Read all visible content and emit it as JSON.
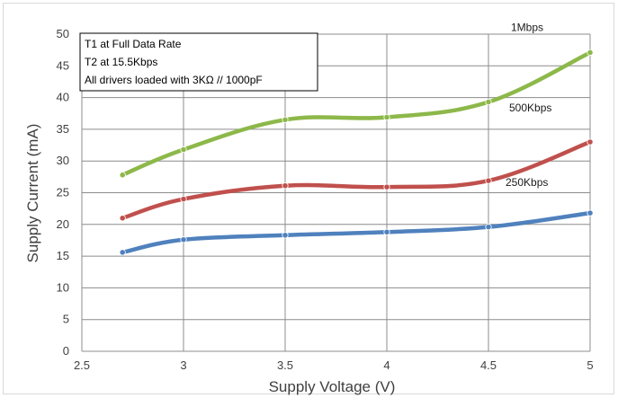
{
  "chart_data": {
    "type": "line",
    "xlabel": "Supply Voltage (V)",
    "ylabel": "Supply Current (mA)",
    "xlim": [
      2.5,
      5
    ],
    "ylim": [
      0,
      50
    ],
    "x_ticks": [
      "2.5",
      "3",
      "3.5",
      "4",
      "4.5",
      "5"
    ],
    "y_ticks": [
      "0",
      "5",
      "10",
      "15",
      "20",
      "25",
      "30",
      "35",
      "40",
      "45",
      "50"
    ],
    "grid": true,
    "notes": [
      "T1 at Full Data Rate",
      "T2 at 15.5Kbps",
      "All drivers loaded with 3KΩ // 1000pF"
    ],
    "series": [
      {
        "name": "1Mbps",
        "color": "#8db84a",
        "x": [
          2.7,
          3,
          3.5,
          4,
          4.5,
          5
        ],
        "values": [
          27.8,
          31.8,
          36.5,
          36.9,
          39.3,
          47.1
        ]
      },
      {
        "name": "500Kbps",
        "color": "#c0504d",
        "x": [
          2.7,
          3,
          3.5,
          4,
          4.5,
          5
        ],
        "values": [
          21.0,
          24.0,
          26.1,
          25.9,
          26.9,
          33.0
        ]
      },
      {
        "name": "250Kbps",
        "color": "#4f81bd",
        "x": [
          2.7,
          3,
          3.5,
          4,
          4.5,
          5
        ],
        "values": [
          15.6,
          17.6,
          18.3,
          18.8,
          19.6,
          21.8
        ]
      }
    ]
  }
}
